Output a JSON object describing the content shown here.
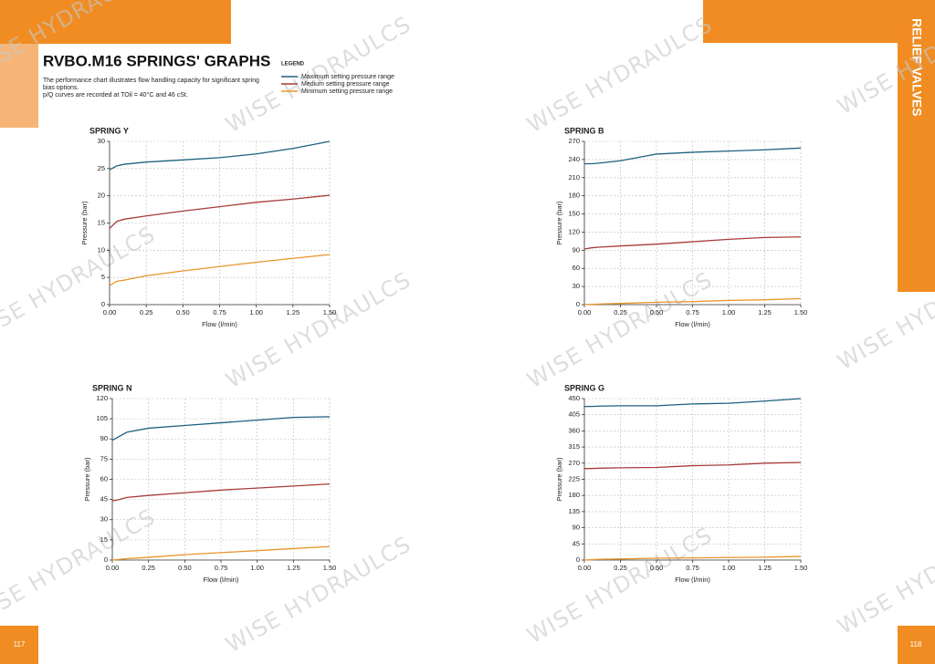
{
  "header": {
    "title": "RVBO.M16 SPRINGS' GRAPHS",
    "description": [
      "The performance chart illustrates flow handling capacity for significant spring",
      "bias options.",
      "p/Q curves are recorded at TOil = 40°C and 46 cSt."
    ]
  },
  "legend": {
    "title": "LEGEND"
  },
  "side_tab": "RELIEF VALVES",
  "page_numbers": [
    "117",
    "118"
  ],
  "watermark": "WISE HYDRAULCS",
  "chart_data": [
    {
      "type": "line",
      "title": "SPRING Y",
      "x_label": "Flow (l/min)",
      "y_label": "Pressure (bar)",
      "x": [
        0,
        0.05,
        0.1,
        0.25,
        0.5,
        0.75,
        1.0,
        1.25,
        1.5
      ],
      "series": [
        {
          "name": "Maximum setting pressure range",
          "color": "#1f5f80",
          "values": [
            24.8,
            25.5,
            25.8,
            26.2,
            26.6,
            27.0,
            27.7,
            28.7,
            30
          ]
        },
        {
          "name": "Medium setting pressure range",
          "color": "#a83a3a",
          "values": [
            14,
            15.3,
            15.7,
            16.3,
            17.2,
            18.0,
            18.8,
            19.4,
            20.1
          ]
        },
        {
          "name": "Minimum setting pressure range",
          "color": "#e8952a",
          "values": [
            3.5,
            4.3,
            4.5,
            5.3,
            6.2,
            7.0,
            7.8,
            8.5,
            9.2
          ]
        }
      ],
      "xlim": [
        0,
        1.5
      ],
      "xticks": [
        {
          "value": 0,
          "label": "0.00"
        },
        {
          "value": 0.25,
          "label": "0.25"
        },
        {
          "value": 0.5,
          "label": "0.50"
        },
        {
          "value": 0.75,
          "label": "0.75"
        },
        {
          "value": 1,
          "label": "1.00"
        },
        {
          "value": 1.25,
          "label": "1.25"
        },
        {
          "value": 1.5,
          "label": "1.50"
        }
      ],
      "ylim": [
        0,
        30
      ],
      "yticks": [
        0,
        5,
        10,
        15,
        20,
        25,
        30
      ],
      "grid": true
    },
    {
      "type": "line",
      "title": "SPRING B",
      "x_label": "Flow (l/min)",
      "y_label": "Pressure (bar)",
      "x": [
        0,
        0.05,
        0.1,
        0.25,
        0.5,
        0.75,
        1.0,
        1.25,
        1.5
      ],
      "series": [
        {
          "name": "Maximum setting pressure range",
          "color": "#1f5f80",
          "values": [
            233,
            233,
            234,
            238,
            249,
            252,
            254,
            256,
            259
          ]
        },
        {
          "name": "Medium setting pressure range",
          "color": "#a83a3a",
          "values": [
            92,
            94,
            95,
            97,
            100,
            104,
            108,
            111,
            112
          ]
        },
        {
          "name": "Minimum setting pressure range",
          "color": "#e8952a",
          "values": [
            0,
            0.5,
            1,
            2,
            4,
            5,
            7,
            8,
            10
          ]
        }
      ],
      "xlim": [
        0,
        1.5
      ],
      "xticks": [
        {
          "value": 0,
          "label": "0.00"
        },
        {
          "value": 0.25,
          "label": "0.25"
        },
        {
          "value": 0.5,
          "label": "0.50"
        },
        {
          "value": 0.75,
          "label": "0.75"
        },
        {
          "value": 1,
          "label": "1.00"
        },
        {
          "value": 1.25,
          "label": "1.25"
        },
        {
          "value": 1.5,
          "label": "1.50"
        }
      ],
      "ylim": [
        0,
        270
      ],
      "yticks": [
        0,
        30,
        60,
        90,
        120,
        150,
        180,
        210,
        240,
        270
      ],
      "grid": true
    },
    {
      "type": "line",
      "title": "SPRING N",
      "x_label": "Flow (l/min)",
      "y_label": "Pressure (bar)",
      "x": [
        0,
        0.05,
        0.1,
        0.25,
        0.5,
        0.75,
        1.0,
        1.25,
        1.5
      ],
      "series": [
        {
          "name": "Maximum setting pressure range",
          "color": "#1f5f80",
          "values": [
            89,
            92,
            95,
            98,
            100,
            102,
            104,
            106,
            106.5
          ]
        },
        {
          "name": "Medium setting pressure range",
          "color": "#a83a3a",
          "values": [
            44,
            45,
            46.5,
            48,
            50,
            52,
            53.5,
            55,
            56.5
          ]
        },
        {
          "name": "Minimum setting pressure range",
          "color": "#e8952a",
          "values": [
            0,
            0.5,
            1,
            2,
            4,
            5.5,
            7,
            8.5,
            10
          ]
        }
      ],
      "xlim": [
        0,
        1.5
      ],
      "xticks": [
        {
          "value": 0,
          "label": "0.00"
        },
        {
          "value": 0.25,
          "label": "0.25"
        },
        {
          "value": 0.5,
          "label": "0.50"
        },
        {
          "value": 0.75,
          "label": "0.75"
        },
        {
          "value": 1,
          "label": "1.00"
        },
        {
          "value": 1.25,
          "label": "1.25"
        },
        {
          "value": 1.5,
          "label": "1.50"
        }
      ],
      "ylim": [
        0,
        120
      ],
      "yticks": [
        0,
        15,
        30,
        45,
        60,
        75,
        90,
        105,
        120
      ],
      "grid": true
    },
    {
      "type": "line",
      "title": "SPRING G",
      "x_label": "Flow (l/min)",
      "y_label": "Pressure (bar)",
      "x": [
        0,
        0.05,
        0.1,
        0.25,
        0.5,
        0.75,
        1.0,
        1.25,
        1.5
      ],
      "series": [
        {
          "name": "Maximum setting pressure range",
          "color": "#1f5f80",
          "values": [
            428,
            428,
            429,
            430,
            430,
            435,
            437,
            443,
            450
          ]
        },
        {
          "name": "Medium setting pressure range",
          "color": "#a83a3a",
          "values": [
            255,
            255,
            256,
            257,
            258,
            263,
            265,
            270,
            272
          ]
        },
        {
          "name": "Minimum setting pressure range",
          "color": "#e8952a",
          "values": [
            0,
            1,
            2,
            3,
            5,
            6,
            7,
            8,
            10
          ]
        }
      ],
      "xlim": [
        0,
        1.5
      ],
      "xticks": [
        {
          "value": 0,
          "label": "0.00"
        },
        {
          "value": 0.25,
          "label": "0.25"
        },
        {
          "value": 0.5,
          "label": "0.50"
        },
        {
          "value": 0.75,
          "label": "0.75"
        },
        {
          "value": 1,
          "label": "1.00"
        },
        {
          "value": 1.25,
          "label": "1.25"
        },
        {
          "value": 1.5,
          "label": "1.50"
        }
      ],
      "ylim": [
        0,
        450
      ],
      "yticks": [
        0,
        45,
        90,
        135,
        180,
        225,
        270,
        315,
        360,
        405,
        450
      ],
      "grid": true
    }
  ]
}
